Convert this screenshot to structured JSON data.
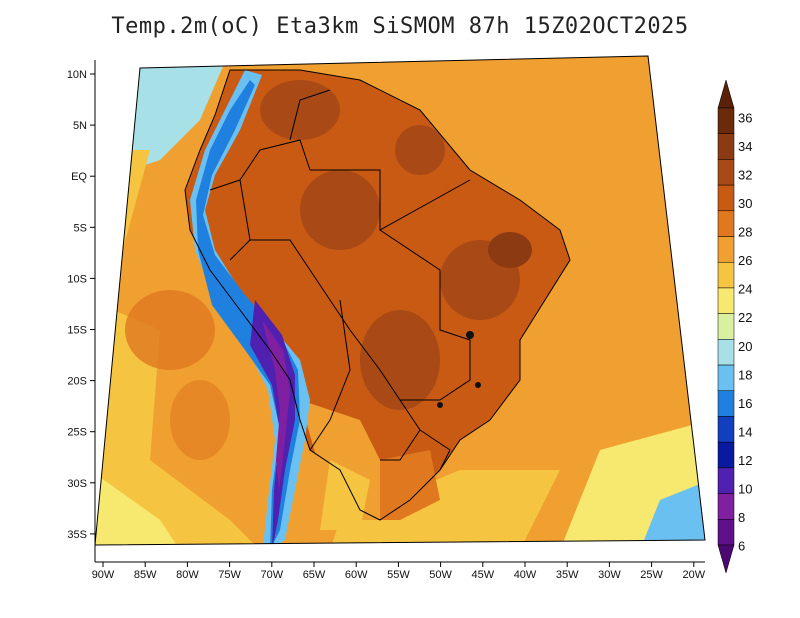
{
  "title": "Temp.2m(oC) Eta3km SiSMOM 87h 15Z02OCT2025",
  "lon_labels": [
    "90W",
    "85W",
    "80W",
    "75W",
    "70W",
    "65W",
    "60W",
    "55W",
    "50W",
    "45W",
    "40W",
    "35W",
    "30W",
    "25W",
    "20W"
  ],
  "lat_labels": [
    "10N",
    "5N",
    "EQ",
    "5S",
    "10S",
    "15S",
    "20S",
    "25S",
    "30S",
    "35S"
  ],
  "colorbar": {
    "labels": [
      "36",
      "34",
      "32",
      "30",
      "28",
      "26",
      "24",
      "22",
      "20",
      "18",
      "16",
      "14",
      "12",
      "10",
      "8",
      "6"
    ],
    "colors": [
      "#6b2a0a",
      "#8b3a12",
      "#a94a16",
      "#c85a14",
      "#e07820",
      "#f0a030",
      "#f5c542",
      "#f7e870",
      "#d8f0a0",
      "#a8e0e8",
      "#6ac0f0",
      "#2080e0",
      "#1040c0",
      "#0a1aa0",
      "#5020b0",
      "#8020a0",
      "#60108a"
    ],
    "extend_top_color": "#5a2008",
    "extend_bottom_color": "#4a0870"
  }
}
